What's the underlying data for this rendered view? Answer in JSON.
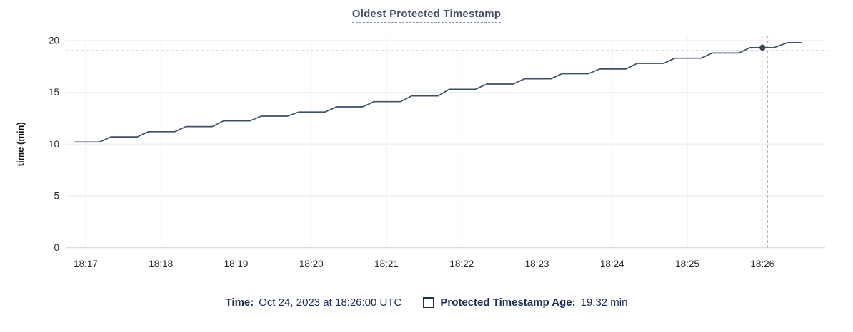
{
  "legend": {
    "time_label": "Time:",
    "time_value": "Oct 24, 2023 at 18:26:00 UTC",
    "series_label": "Protected Timestamp Age:",
    "series_value": "19.32 min"
  },
  "colors": {
    "series_line": "#3f4f68",
    "hover_dot": "#394455",
    "crosshair": "#9cb1c2",
    "grid_line": "#eeeeee",
    "axis_line": "#dcdcdc",
    "tick_text": "#24292f",
    "axis_title_text": "#111111",
    "title_text": "#434f65",
    "legend_text": "#1c2e52"
  },
  "chart_data": {
    "type": "line",
    "title": "Oldest Protected Timestamp",
    "xlabel": "",
    "ylabel": "time (min)",
    "ylim": [
      0,
      20
    ],
    "yticks": [
      0,
      5,
      10,
      15,
      20
    ],
    "xticks": [
      "18:17",
      "18:18",
      "18:19",
      "18:20",
      "18:21",
      "18:22",
      "18:23",
      "18:24",
      "18:25",
      "18:26"
    ],
    "x_range": [
      "18:16:44",
      "18:26:50"
    ],
    "grid": true,
    "legend_position": "bottom",
    "line_style": "stepped-staircase",
    "series": [
      {
        "name": "Protected Timestamp Age",
        "unit": "min",
        "points": [
          [
            "18:16:51",
            10.2
          ],
          [
            "18:17:11",
            10.2
          ],
          [
            "18:17:20",
            10.7
          ],
          [
            "18:17:41",
            10.7
          ],
          [
            "18:17:50",
            11.2
          ],
          [
            "18:18:11",
            11.2
          ],
          [
            "18:18:20",
            11.7
          ],
          [
            "18:18:41",
            11.7
          ],
          [
            "18:18:50",
            12.25
          ],
          [
            "18:19:11",
            12.25
          ],
          [
            "18:19:20",
            12.7
          ],
          [
            "18:19:41",
            12.7
          ],
          [
            "18:19:50",
            13.1
          ],
          [
            "18:20:11",
            13.1
          ],
          [
            "18:20:20",
            13.6
          ],
          [
            "18:20:41",
            13.6
          ],
          [
            "18:20:50",
            14.1
          ],
          [
            "18:21:11",
            14.1
          ],
          [
            "18:21:20",
            14.65
          ],
          [
            "18:21:41",
            14.65
          ],
          [
            "18:21:50",
            15.3
          ],
          [
            "18:22:11",
            15.3
          ],
          [
            "18:22:20",
            15.8
          ],
          [
            "18:22:41",
            15.8
          ],
          [
            "18:22:50",
            16.3
          ],
          [
            "18:23:11",
            16.3
          ],
          [
            "18:23:20",
            16.8
          ],
          [
            "18:23:41",
            16.8
          ],
          [
            "18:23:50",
            17.25
          ],
          [
            "18:24:11",
            17.25
          ],
          [
            "18:24:20",
            17.8
          ],
          [
            "18:24:41",
            17.8
          ],
          [
            "18:24:50",
            18.3
          ],
          [
            "18:25:11",
            18.3
          ],
          [
            "18:25:20",
            18.8
          ],
          [
            "18:25:41",
            18.8
          ],
          [
            "18:25:50",
            19.32
          ],
          [
            "18:26:09",
            19.32
          ],
          [
            "18:26:20",
            19.8
          ],
          [
            "18:26:31",
            19.8
          ]
        ]
      }
    ],
    "hover": {
      "point_time": "18:26:00",
      "point_value": 19.32,
      "cursor_time": "18:26:04",
      "cursor_value": 19.02
    }
  }
}
